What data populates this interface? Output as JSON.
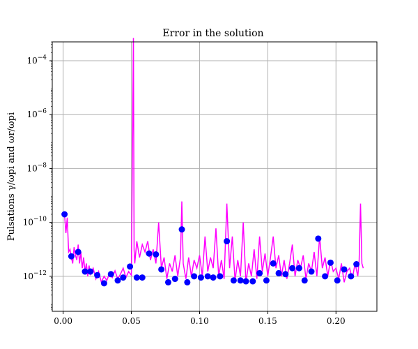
{
  "chart_data": {
    "type": "line",
    "title": "Error in the solution",
    "xlabel": "",
    "ylabel_text": "Pulsations  γ/ωpi and ωr/ωpi",
    "yscale": "log",
    "xlim": [
      -0.008,
      0.23
    ],
    "ylim_log10": [
      -13.3,
      -3.3
    ],
    "grid": true,
    "x_ticks": [
      0.0,
      0.05,
      0.1,
      0.15,
      0.2
    ],
    "x_tick_labels": [
      "0.00",
      "0.05",
      "0.10",
      "0.15",
      "0.20"
    ],
    "y_ticks_log10": [
      -12,
      -10,
      -8,
      -6,
      -4
    ],
    "y_tick_labels": [
      "10−12",
      "10−10",
      "10−8",
      "10−6",
      "10−4"
    ],
    "series": [
      {
        "name": "error_continuous",
        "color": "#ff00ff",
        "style": "line",
        "x": [
          0.001,
          0.002,
          0.003,
          0.004,
          0.005,
          0.006,
          0.007,
          0.008,
          0.009,
          0.01,
          0.011,
          0.012,
          0.013,
          0.014,
          0.015,
          0.016,
          0.017,
          0.018,
          0.019,
          0.02,
          0.022,
          0.024,
          0.026,
          0.028,
          0.03,
          0.032,
          0.034,
          0.036,
          0.038,
          0.04,
          0.042,
          0.044,
          0.046,
          0.048,
          0.05,
          0.0515,
          0.052,
          0.0525,
          0.054,
          0.056,
          0.058,
          0.06,
          0.062,
          0.064,
          0.066,
          0.068,
          0.07,
          0.072,
          0.074,
          0.076,
          0.078,
          0.08,
          0.082,
          0.084,
          0.086,
          0.087,
          0.088,
          0.09,
          0.092,
          0.094,
          0.096,
          0.098,
          0.1,
          0.102,
          0.104,
          0.106,
          0.108,
          0.11,
          0.112,
          0.114,
          0.116,
          0.118,
          0.12,
          0.122,
          0.124,
          0.126,
          0.128,
          0.13,
          0.132,
          0.134,
          0.136,
          0.138,
          0.14,
          0.142,
          0.144,
          0.146,
          0.148,
          0.15,
          0.152,
          0.154,
          0.156,
          0.158,
          0.16,
          0.162,
          0.164,
          0.166,
          0.168,
          0.17,
          0.172,
          0.174,
          0.176,
          0.178,
          0.18,
          0.182,
          0.184,
          0.186,
          0.188,
          0.19,
          0.192,
          0.194,
          0.196,
          0.198,
          0.2,
          0.202,
          0.204,
          0.206,
          0.208,
          0.21,
          0.212,
          0.214,
          0.216,
          0.217,
          0.218,
          0.219,
          0.22
        ],
        "y": [
          2e-10,
          4e-11,
          1.5e-10,
          8e-12,
          1e-11,
          5e-12,
          3e-12,
          1.2e-11,
          6e-12,
          4e-12,
          1.5e-11,
          3e-12,
          8e-12,
          2e-12,
          5e-12,
          1.5e-12,
          3e-12,
          1e-12,
          2.5e-12,
          1.2e-12,
          2e-12,
          8e-13,
          1.5e-12,
          6e-13,
          1e-12,
          7e-13,
          1.3e-12,
          9e-13,
          1.6e-12,
          8e-13,
          1.2e-12,
          2e-12,
          9e-13,
          1.5e-12,
          1.1e-12,
          0.0007,
          1e-11,
          3e-12,
          2e-11,
          5e-12,
          1.5e-11,
          8e-12,
          2e-11,
          4e-12,
          1e-11,
          3e-12,
          1e-10,
          2e-12,
          5e-12,
          8e-13,
          3e-12,
          1.5e-12,
          6e-12,
          1e-12,
          5e-12,
          6e-10,
          3e-12,
          8e-13,
          5e-12,
          1e-12,
          4e-12,
          2e-12,
          6e-12,
          1e-12,
          3e-11,
          1.5e-12,
          5e-12,
          2e-12,
          6e-11,
          1e-12,
          4e-12,
          8e-13,
          5e-10,
          2e-12,
          3e-11,
          7e-13,
          4e-12,
          1e-12,
          1e-10,
          6e-13,
          3e-12,
          1e-12,
          1e-11,
          8e-13,
          3e-11,
          1.5e-12,
          7e-12,
          1e-12,
          5e-12,
          3e-11,
          2e-12,
          6e-12,
          1e-12,
          4e-12,
          8e-13,
          3e-12,
          1.5e-11,
          1e-12,
          4e-12,
          2e-12,
          6e-12,
          8e-13,
          3e-12,
          1.5e-12,
          8e-12,
          1e-12,
          3e-11,
          2e-12,
          5e-12,
          1e-12,
          4e-12,
          1.5e-12,
          2e-12,
          8e-13,
          3e-12,
          6e-13,
          1.5e-12,
          2e-12,
          8e-13,
          3e-12,
          1e-12,
          4e-12,
          5e-10,
          3e-12,
          2e-12
        ]
      },
      {
        "name": "error_points",
        "color": "#0000ff",
        "style": "markers",
        "x": [
          0.001,
          0.006,
          0.011,
          0.016,
          0.02,
          0.025,
          0.03,
          0.035,
          0.04,
          0.044,
          0.049,
          0.054,
          0.058,
          0.063,
          0.068,
          0.072,
          0.077,
          0.082,
          0.087,
          0.091,
          0.096,
          0.101,
          0.106,
          0.11,
          0.115,
          0.12,
          0.125,
          0.13,
          0.134,
          0.139,
          0.144,
          0.149,
          0.154,
          0.158,
          0.163,
          0.168,
          0.173,
          0.177,
          0.182,
          0.187,
          0.192,
          0.196,
          0.201,
          0.206,
          0.211,
          0.215
        ],
        "y": [
          2e-10,
          5.5e-12,
          8e-12,
          1.5e-12,
          1.5e-12,
          1.1e-12,
          5.5e-13,
          1.2e-12,
          7e-13,
          9e-13,
          2.3e-12,
          9e-13,
          9e-13,
          7e-12,
          6.5e-12,
          1.8e-12,
          6e-13,
          8e-13,
          5.5e-11,
          6e-13,
          1e-12,
          9e-13,
          1e-12,
          9e-13,
          1e-12,
          2e-11,
          7e-13,
          7e-13,
          6.5e-13,
          6.5e-13,
          1.3e-12,
          7e-13,
          3e-12,
          1.3e-12,
          1.2e-12,
          2e-12,
          2e-12,
          7e-13,
          1.5e-12,
          2.5e-11,
          1e-12,
          3.2e-12,
          7e-13,
          1.8e-12,
          1e-12,
          2.8e-12
        ]
      }
    ]
  }
}
